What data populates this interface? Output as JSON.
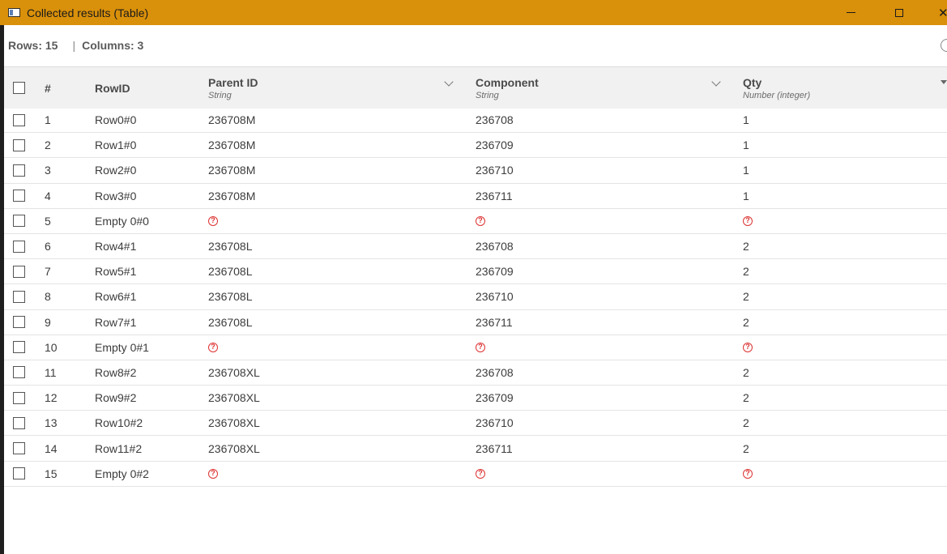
{
  "window": {
    "title": "Collected results (Table)",
    "icon": "table-window-icon",
    "close_glyph": "✕"
  },
  "info": {
    "rows_label": "Rows: 15",
    "separator": "|",
    "columns_label": "Columns: 3"
  },
  "table": {
    "headers": {
      "index": "#",
      "rowid": "RowID",
      "parent": {
        "title": "Parent ID",
        "type": "String"
      },
      "component": {
        "title": "Component",
        "type": "String"
      },
      "qty": {
        "title": "Qty",
        "type": "Number (integer)"
      }
    },
    "missing_glyph": "?",
    "missing_color": "#dd3333",
    "rows": [
      {
        "n": "1",
        "rowid": "Row0#0",
        "parent": "236708M",
        "component": "236708",
        "qty": "1",
        "missing": false
      },
      {
        "n": "2",
        "rowid": "Row1#0",
        "parent": "236708M",
        "component": "236709",
        "qty": "1",
        "missing": false
      },
      {
        "n": "3",
        "rowid": "Row2#0",
        "parent": "236708M",
        "component": "236710",
        "qty": "1",
        "missing": false
      },
      {
        "n": "4",
        "rowid": "Row3#0",
        "parent": "236708M",
        "component": "236711",
        "qty": "1",
        "missing": false
      },
      {
        "n": "5",
        "rowid": "Empty 0#0",
        "parent": "",
        "component": "",
        "qty": "",
        "missing": true
      },
      {
        "n": "6",
        "rowid": "Row4#1",
        "parent": "236708L",
        "component": "236708",
        "qty": "2",
        "missing": false
      },
      {
        "n": "7",
        "rowid": "Row5#1",
        "parent": "236708L",
        "component": "236709",
        "qty": "2",
        "missing": false
      },
      {
        "n": "8",
        "rowid": "Row6#1",
        "parent": "236708L",
        "component": "236710",
        "qty": "2",
        "missing": false
      },
      {
        "n": "9",
        "rowid": "Row7#1",
        "parent": "236708L",
        "component": "236711",
        "qty": "2",
        "missing": false
      },
      {
        "n": "10",
        "rowid": "Empty 0#1",
        "parent": "",
        "component": "",
        "qty": "",
        "missing": true
      },
      {
        "n": "11",
        "rowid": "Row8#2",
        "parent": "236708XL",
        "component": "236708",
        "qty": "2",
        "missing": false
      },
      {
        "n": "12",
        "rowid": "Row9#2",
        "parent": "236708XL",
        "component": "236709",
        "qty": "2",
        "missing": false
      },
      {
        "n": "13",
        "rowid": "Row10#2",
        "parent": "236708XL",
        "component": "236710",
        "qty": "2",
        "missing": false
      },
      {
        "n": "14",
        "rowid": "Row11#2",
        "parent": "236708XL",
        "component": "236711",
        "qty": "2",
        "missing": false
      },
      {
        "n": "15",
        "rowid": "Empty 0#2",
        "parent": "",
        "component": "",
        "qty": "",
        "missing": true
      }
    ]
  },
  "colors": {
    "titlebar": "#d9900a",
    "header_bg": "#f1f1f1"
  }
}
